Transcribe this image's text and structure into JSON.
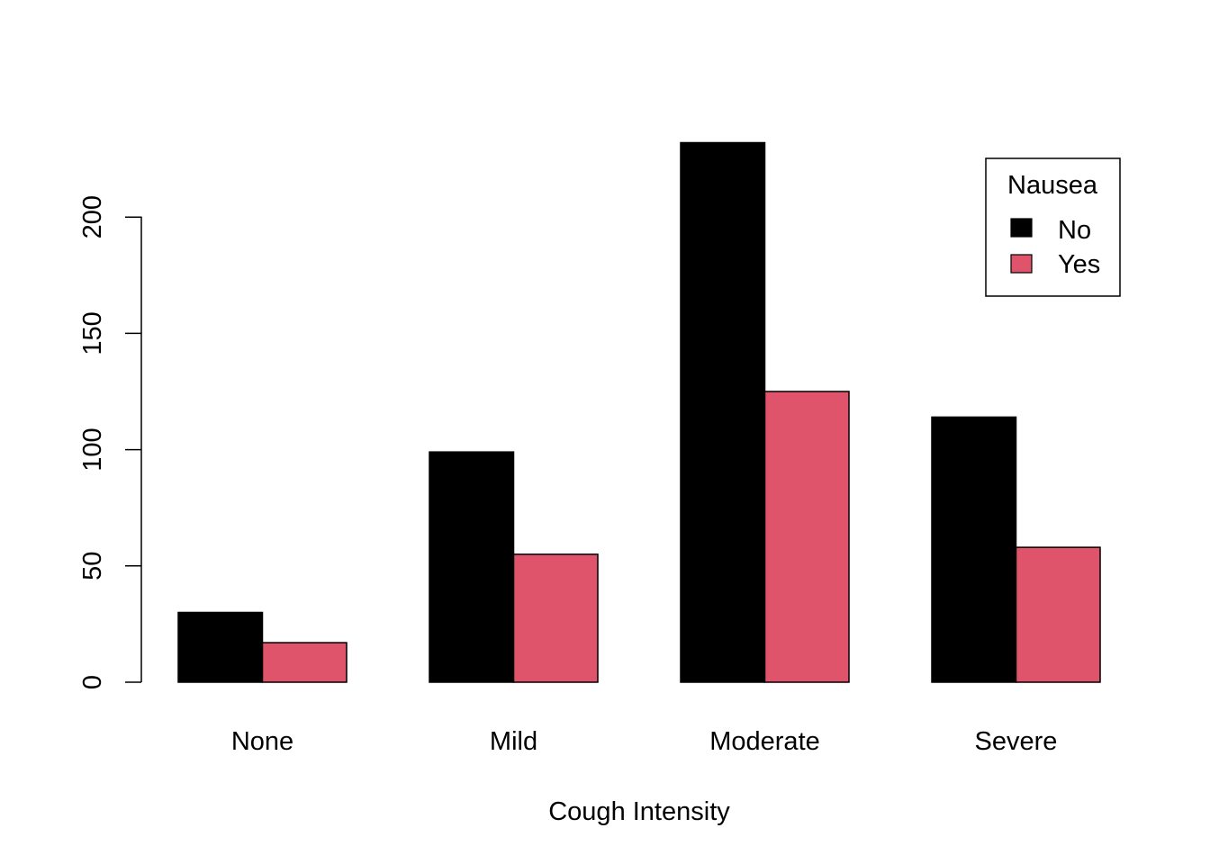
{
  "chart_data": {
    "type": "bar",
    "grouped": true,
    "categories": [
      "None",
      "Mild",
      "Moderate",
      "Severe"
    ],
    "series": [
      {
        "name": "No",
        "color": "#000000",
        "values": [
          30,
          99,
          232,
          114
        ]
      },
      {
        "name": "Yes",
        "color": "#DF536B",
        "values": [
          17,
          55,
          125,
          58
        ]
      }
    ],
    "title": "",
    "xlabel": "Cough Intensity",
    "ylabel": "",
    "ylim": [
      0,
      232
    ],
    "yticks": [
      0,
      50,
      100,
      150,
      200
    ],
    "ytick_labels": [
      "0",
      "50",
      "100",
      "150",
      "200"
    ],
    "grid": false,
    "legend": {
      "title": "Nausea",
      "position": "top-right",
      "labels": [
        "No",
        "Yes"
      ]
    }
  }
}
